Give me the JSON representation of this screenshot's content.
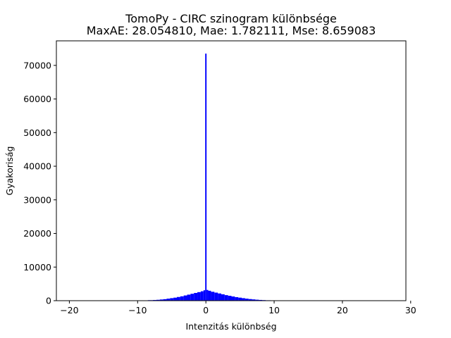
{
  "chart_data": {
    "type": "bar",
    "title": "TomoPy - CIRC szinogram különbsége",
    "subtitle": "MaxAE: 28.054810, Mae: 1.782111, Mse: 8.659083",
    "xlabel": "Intenzitás különbség",
    "ylabel": "Gyakoriság",
    "xlim": [
      -21.9,
      29.3
    ],
    "ylim": [
      0,
      77300
    ],
    "xticks": [
      -20,
      -10,
      0,
      10,
      20,
      30
    ],
    "xtick_labels": [
      "−20",
      "−10",
      "0",
      "10",
      "20",
      "30"
    ],
    "yticks": [
      0,
      10000,
      20000,
      30000,
      40000,
      50000,
      60000,
      70000
    ],
    "ytick_labels": [
      "0",
      "10000",
      "20000",
      "30000",
      "40000",
      "50000",
      "60000",
      "70000"
    ],
    "bar_color": "#0000ff",
    "grid": false,
    "x": [
      -20.0,
      -19.0,
      -18.0,
      -17.0,
      -16.0,
      -15.0,
      -14.0,
      -13.0,
      -12.0,
      -11.0,
      -10.0,
      -9.0,
      -8.0,
      -7.5,
      -7.0,
      -6.5,
      -6.0,
      -5.5,
      -5.0,
      -4.5,
      -4.0,
      -3.5,
      -3.0,
      -2.5,
      -2.0,
      -1.5,
      -1.0,
      -0.5,
      -0.2,
      0.0,
      0.2,
      0.5,
      1.0,
      1.5,
      2.0,
      2.5,
      3.0,
      3.5,
      4.0,
      4.5,
      5.0,
      5.5,
      6.0,
      6.5,
      7.0,
      7.5,
      8.0,
      8.5,
      9.0,
      10.0,
      11.0,
      12.0,
      13.0,
      14.0,
      15.0,
      16.0,
      17.0,
      18.0,
      19.0,
      20.0,
      22.0,
      24.0,
      26.0,
      28.0
    ],
    "values": [
      10,
      10,
      10,
      10,
      20,
      20,
      20,
      30,
      30,
      40,
      60,
      80,
      150,
      200,
      260,
      350,
      450,
      600,
      750,
      900,
      1100,
      1300,
      1550,
      1800,
      2050,
      2300,
      2550,
      2800,
      3100,
      73500,
      3200,
      2950,
      2650,
      2400,
      2150,
      1900,
      1650,
      1450,
      1250,
      1050,
      900,
      750,
      600,
      480,
      380,
      290,
      220,
      170,
      120,
      60,
      40,
      30,
      25,
      20,
      15,
      10,
      10,
      10,
      10,
      10,
      10,
      5,
      5,
      5
    ]
  }
}
